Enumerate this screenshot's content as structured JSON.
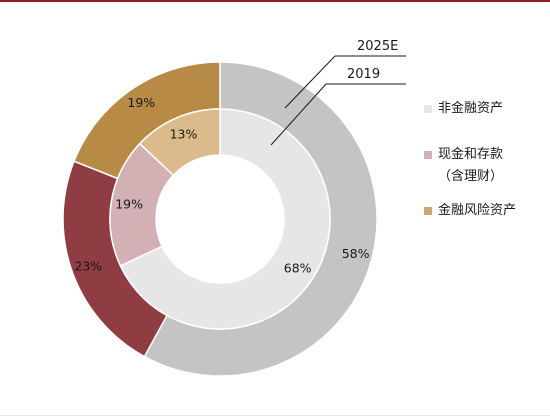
{
  "chart_data": {
    "type": "pie",
    "variant": "nested-donut",
    "categories": [
      "非金融资产",
      "现金和存款（含理财）",
      "金融风险资产"
    ],
    "legend": [
      {
        "label": "非金融资产",
        "color": "#e6e6e6"
      },
      {
        "label_lines": [
          "现金和存款",
          "（含理财）"
        ],
        "color": "#d2b0b4"
      },
      {
        "label": "金融风险资产",
        "color": "#cda571"
      }
    ],
    "legend_position": "right",
    "series": [
      {
        "name": "2025E",
        "ring": "outer",
        "values": [
          58,
          23,
          19
        ],
        "labels": [
          "58%",
          "23%",
          "19%"
        ],
        "colors": [
          "#c4c4c4",
          "#8f3c42",
          "#b78a45"
        ]
      },
      {
        "name": "2019",
        "ring": "inner",
        "values": [
          68,
          19,
          13
        ],
        "labels": [
          "68%",
          "19%",
          "13%"
        ],
        "colors": [
          "#e6e6e6",
          "#d2b0b4",
          "#dbbb8b"
        ]
      }
    ]
  }
}
